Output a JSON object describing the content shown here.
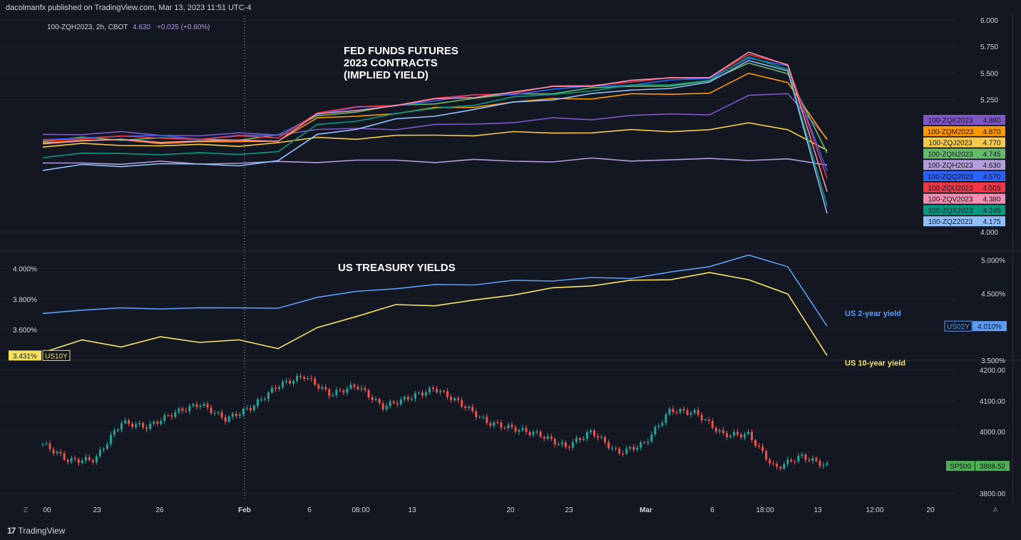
{
  "header": {
    "publisher": "dacolmanfx published on TradingView.com, Mar 13, 2023 11:51 UTC-4"
  },
  "footer": {
    "brand": "TradingView",
    "logo_glyph": "17"
  },
  "colors": {
    "background": "#131722",
    "grid": "#1f2330",
    "text": "#d1d4dc",
    "muted": "#787b86",
    "up": "#26a69a",
    "down": "#ef5350",
    "us2y": "#5b9cf6",
    "us10y": "#f7e35f"
  },
  "chart_data": [
    {
      "type": "line",
      "pane": "fed_funds_futures",
      "legend_line": "100-ZQH2023, 2h, CBOT",
      "legend_price": "4.630",
      "legend_change": "+0.025 (+0.60%)",
      "annotation": [
        "FED FUNDS FUTURES",
        "2023 CONTRACTS",
        "(IMPLIED YIELD)"
      ],
      "ylim": [
        4.0,
        6.0
      ],
      "y_ticks": [
        "6.000",
        "5.750",
        "5.500",
        "5.250",
        "4.000"
      ],
      "x": [
        0,
        5,
        10,
        15,
        20,
        25,
        30,
        35,
        40,
        45,
        50,
        55,
        60,
        65,
        70,
        75,
        80,
        85,
        90,
        95,
        100
      ],
      "series": [
        {
          "name": "100-ZQK2023",
          "last": "4.880",
          "color": "#7e57c2",
          "values": [
            4.92,
            4.93,
            4.93,
            4.92,
            4.91,
            4.92,
            4.93,
            4.96,
            4.97,
            4.98,
            5.0,
            5.02,
            5.04,
            5.06,
            5.07,
            5.1,
            5.1,
            5.12,
            5.28,
            5.3,
            4.88
          ]
        },
        {
          "name": "100-ZQM2023",
          "last": "4.870",
          "color": "#ff9800",
          "values": [
            4.84,
            4.86,
            4.86,
            4.85,
            4.84,
            4.85,
            4.87,
            5.06,
            5.1,
            5.12,
            5.16,
            5.19,
            5.22,
            5.25,
            5.27,
            5.29,
            5.3,
            5.32,
            5.48,
            5.42,
            4.87
          ]
        },
        {
          "name": "100-ZQJ2023",
          "last": "4.770",
          "color": "#f7c948",
          "values": [
            4.8,
            4.82,
            4.82,
            4.82,
            4.81,
            4.82,
            4.84,
            4.88,
            4.89,
            4.9,
            4.91,
            4.92,
            4.93,
            4.94,
            4.94,
            4.95,
            4.96,
            4.96,
            5.02,
            4.98,
            4.77
          ]
        },
        {
          "name": "100-ZQN2023",
          "last": "4.745",
          "color": "#66bb6a",
          "values": [
            4.85,
            4.88,
            4.88,
            4.88,
            4.87,
            4.88,
            4.9,
            5.1,
            5.14,
            5.18,
            5.22,
            5.26,
            5.29,
            5.32,
            5.35,
            5.37,
            5.39,
            5.41,
            5.6,
            5.5,
            4.745
          ]
        },
        {
          "name": "100-ZQH2023",
          "last": "4.630",
          "color": "#b39ddb",
          "values": [
            4.65,
            4.65,
            4.65,
            4.65,
            4.65,
            4.65,
            4.65,
            4.67,
            4.67,
            4.67,
            4.67,
            4.67,
            4.67,
            4.67,
            4.68,
            4.68,
            4.68,
            4.68,
            4.69,
            4.68,
            4.63
          ]
        },
        {
          "name": "100-ZQQ2023",
          "last": "4.570",
          "color": "#2962ff",
          "values": [
            4.87,
            4.9,
            4.9,
            4.9,
            4.89,
            4.9,
            4.91,
            5.12,
            5.16,
            5.2,
            5.24,
            5.28,
            5.31,
            5.34,
            5.37,
            5.4,
            5.42,
            5.45,
            5.65,
            5.55,
            4.57
          ]
        },
        {
          "name": "100-ZQU2023",
          "last": "4.505",
          "color": "#f23645",
          "values": [
            4.86,
            4.89,
            4.89,
            4.89,
            4.88,
            4.89,
            4.9,
            5.12,
            5.17,
            5.21,
            5.25,
            5.29,
            5.32,
            5.36,
            5.39,
            5.42,
            5.44,
            5.47,
            5.67,
            5.57,
            4.505
          ]
        },
        {
          "name": "100-ZQV2023",
          "last": "4.380",
          "color": "#f48fb1",
          "values": [
            4.83,
            4.86,
            4.86,
            4.86,
            4.85,
            4.86,
            4.87,
            5.1,
            5.15,
            5.2,
            5.24,
            5.28,
            5.32,
            5.36,
            5.39,
            5.42,
            5.45,
            5.47,
            5.68,
            5.58,
            4.38
          ]
        },
        {
          "name": "100-ZQX2023",
          "last": "4.245",
          "color": "#089981",
          "values": [
            4.7,
            4.73,
            4.74,
            4.74,
            4.73,
            4.74,
            4.76,
            5.0,
            5.06,
            5.11,
            5.16,
            5.21,
            5.26,
            5.3,
            5.34,
            5.37,
            5.4,
            5.43,
            5.64,
            5.55,
            4.245
          ]
        },
        {
          "name": "100-ZQZ2023",
          "last": "4.175",
          "color": "#90bff9",
          "values": [
            4.58,
            4.62,
            4.63,
            4.64,
            4.63,
            4.64,
            4.66,
            4.92,
            4.98,
            5.05,
            5.1,
            5.16,
            5.21,
            5.26,
            5.3,
            5.33,
            5.37,
            5.4,
            5.62,
            5.53,
            4.175
          ]
        }
      ]
    },
    {
      "type": "line",
      "pane": "us_treasury_yields",
      "annotation": "US TREASURY YIELDS",
      "left_axis": {
        "ylim": [
          3.4,
          4.1
        ],
        "ticks": [
          "4.000%",
          "3.800%",
          "3.600%"
        ],
        "badge_value": "3.431%",
        "badge_label": "US10Y"
      },
      "right_axis": {
        "ylim": [
          3.5,
          5.1
        ],
        "ticks": [
          "5.000%",
          "4.500%",
          "3.500%"
        ],
        "badge_label": "US02Y",
        "badge_value": "4.010%"
      },
      "x": [
        0,
        5,
        10,
        15,
        20,
        25,
        30,
        35,
        40,
        45,
        50,
        55,
        60,
        65,
        70,
        75,
        80,
        85,
        90,
        95,
        100
      ],
      "series": [
        {
          "name": "US 2-year yield",
          "axis": "right",
          "color": "#5b9cf6",
          "values": [
            4.2,
            4.25,
            4.28,
            4.27,
            4.28,
            4.29,
            4.27,
            4.45,
            4.52,
            4.58,
            4.62,
            4.64,
            4.68,
            4.7,
            4.72,
            4.74,
            4.8,
            4.92,
            5.05,
            4.92,
            4.01
          ]
        },
        {
          "name": "US 10-year yield",
          "axis": "left",
          "color": "#f7e35f",
          "values": [
            3.45,
            3.52,
            3.5,
            3.54,
            3.53,
            3.52,
            3.49,
            3.6,
            3.7,
            3.75,
            3.77,
            3.78,
            3.84,
            3.86,
            3.9,
            3.91,
            3.94,
            3.96,
            3.94,
            3.82,
            3.431
          ]
        }
      ]
    },
    {
      "type": "candlestick",
      "pane": "sp500",
      "ylim": [
        3780,
        4220
      ],
      "y_ticks": [
        "4200.00",
        "4100.00",
        "4000.00",
        "3800.00"
      ],
      "badge_label": "SP500",
      "badge_value": "3888.52",
      "close_path": [
        3960,
        3905,
        3910,
        4030,
        4015,
        4060,
        4090,
        4040,
        4080,
        4150,
        4180,
        4120,
        4150,
        4080,
        4110,
        4140,
        4090,
        4030,
        4010,
        3990,
        3950,
        4000,
        3930,
        3960,
        4070,
        4060,
        3990,
        3990,
        3880,
        3920,
        3888.52
      ],
      "x_ticks": [
        "00",
        "23",
        "26",
        "Feb",
        "6",
        "08:00",
        "13",
        "20",
        "23",
        "Mar",
        "6",
        "18:00",
        "13",
        "12:00",
        "20"
      ],
      "corner_labels": [
        "Z",
        "A"
      ]
    }
  ]
}
